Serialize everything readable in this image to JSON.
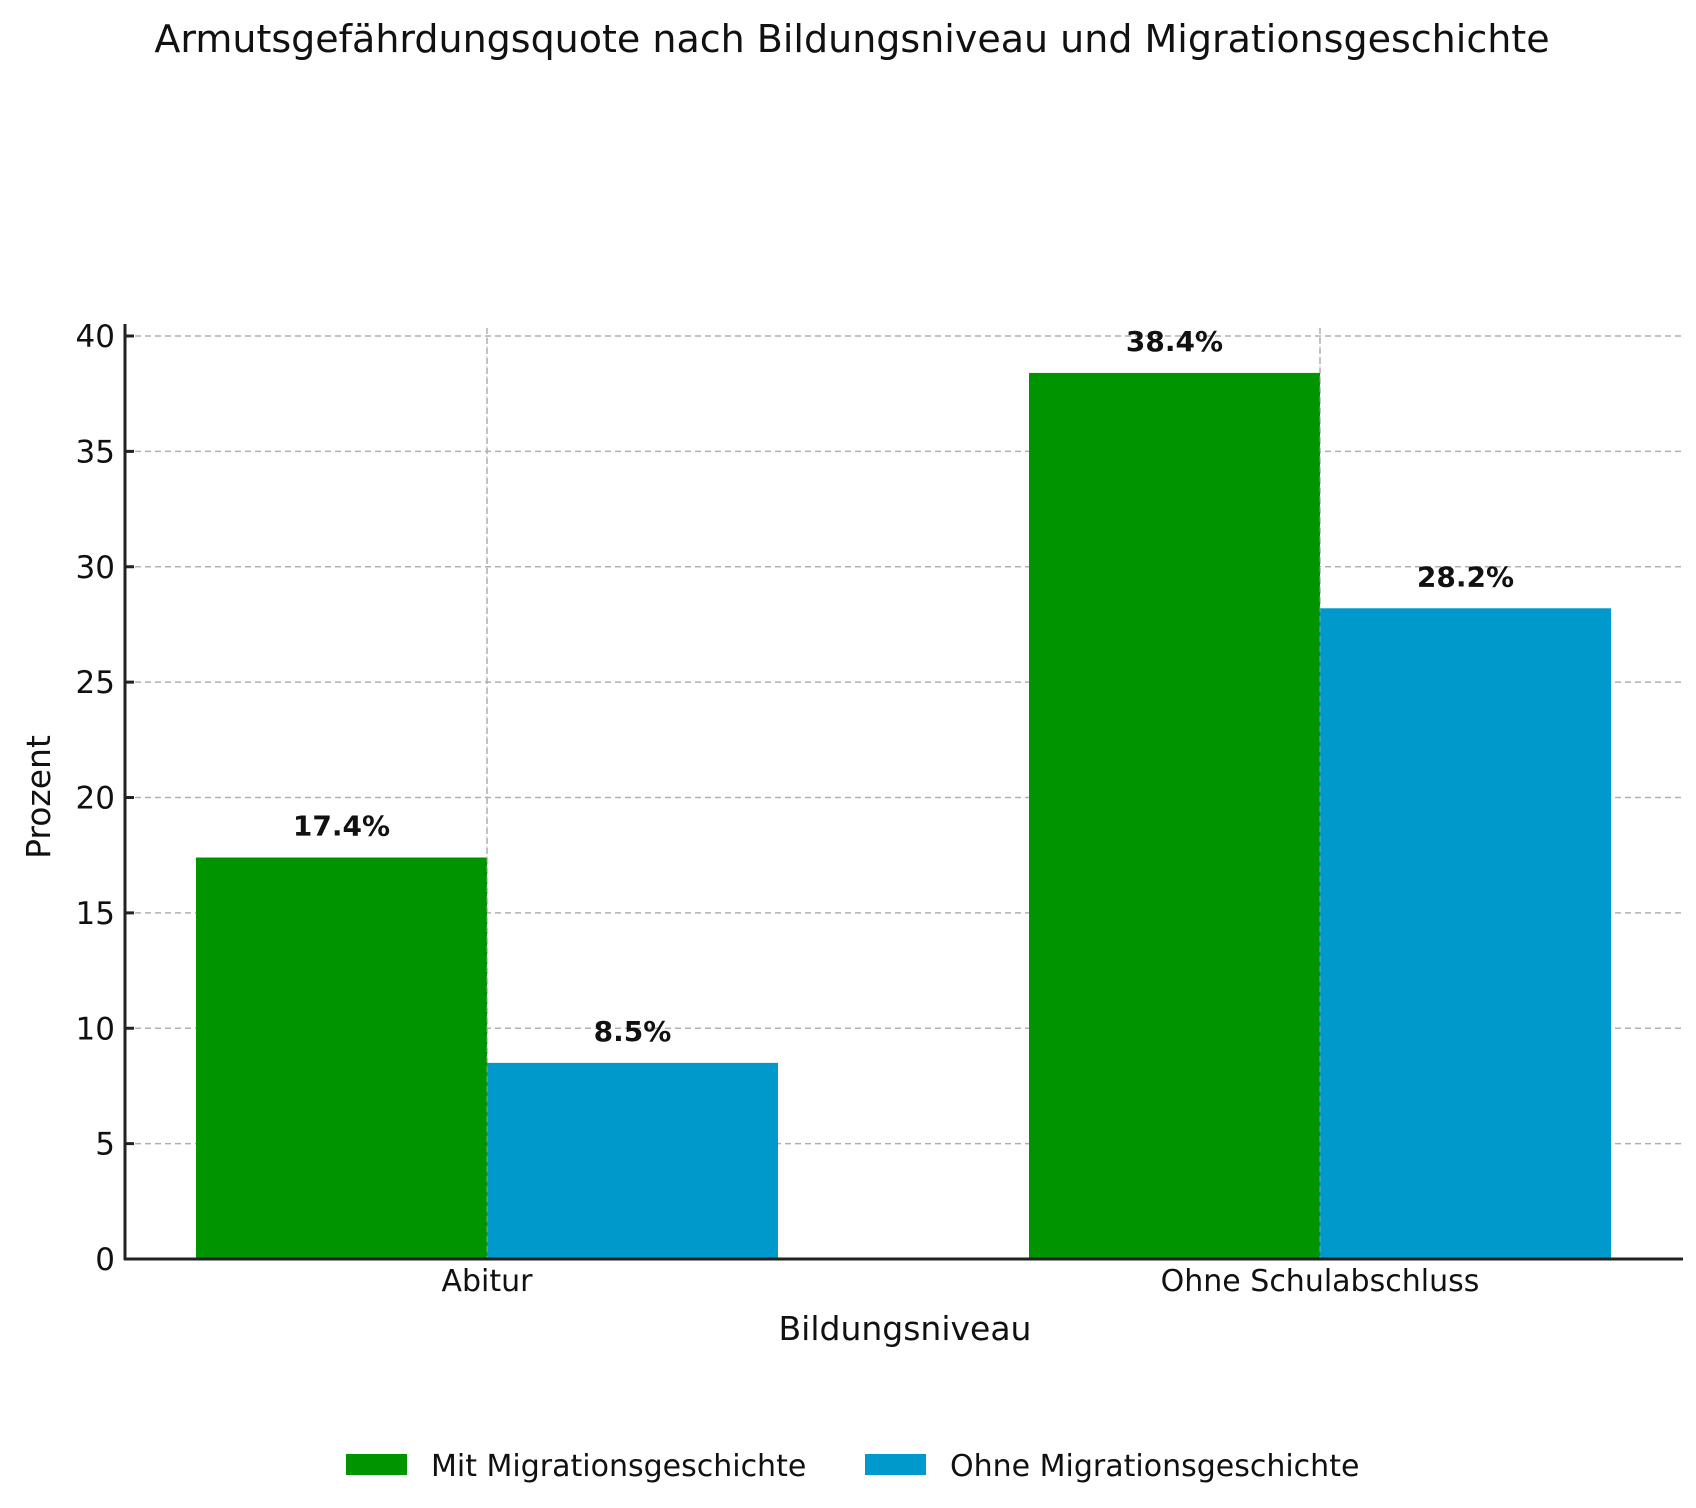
{
  "chart_data": {
    "type": "bar",
    "title": "Armutsgefährdungsquote nach Bildungsniveau und Migrationsgeschichte",
    "xlabel": "Bildungsniveau",
    "ylabel": "Prozent",
    "categories": [
      "Abitur",
      "Ohne Schulabschluss"
    ],
    "series": [
      {
        "name": "Mit Migrationsgeschichte",
        "color": "#009400",
        "values": [
          17.4,
          38.4
        ],
        "labels": [
          "17.4%",
          "38.4%"
        ]
      },
      {
        "name": "Ohne Migrationsgeschichte",
        "color": "#0099cc",
        "values": [
          8.5,
          28.2
        ],
        "labels": [
          "8.5%",
          "28.2%"
        ]
      }
    ],
    "ylim": [
      0,
      40
    ],
    "yticks": [
      0,
      5,
      10,
      15,
      20,
      25,
      30,
      35,
      40
    ],
    "grid": true,
    "legend": "bottom-center"
  }
}
